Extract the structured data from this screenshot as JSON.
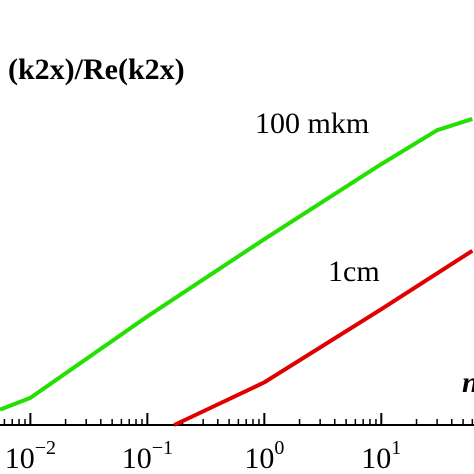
{
  "chart_data": {
    "type": "line",
    "title": "(k2x)/Re(k2x)",
    "x_log": true,
    "y_log": true,
    "xlim": [
      0.0055,
      62
    ],
    "ylim": [
      0.0001,
      25
    ],
    "xticks": [
      {
        "value": 0.01,
        "label": "10−2"
      },
      {
        "value": 0.1,
        "label": "10−1"
      },
      {
        "value": 1,
        "label": "100"
      },
      {
        "value": 10,
        "label": "101"
      }
    ],
    "annotations": [
      "100 mkm",
      "1cm",
      "n"
    ],
    "series": [
      {
        "name": "100 mkm",
        "color": "#22e000",
        "x": [
          0.0055,
          0.01,
          0.1,
          1,
          10,
          30,
          60
        ],
        "values": [
          0.00016,
          0.00023,
          0.0028,
          0.03,
          0.3,
          0.85,
          1.2
        ]
      },
      {
        "name": "1cm",
        "color": "#e00000",
        "x": [
          0.17,
          1,
          10,
          60
        ],
        "values": [
          0.0001,
          0.00037,
          0.0035,
          0.021
        ]
      }
    ]
  }
}
